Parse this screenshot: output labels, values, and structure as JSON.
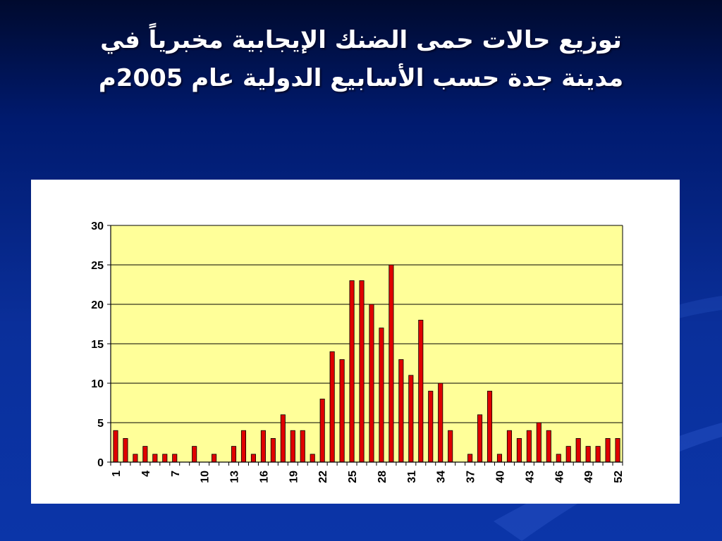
{
  "slide": {
    "title_line1": "توزيع حالات حمى الضنك الإيجابية مخبرياً في",
    "title_line2": "مدينة جدة حسب الأسابيع الدولية عام 2005م"
  },
  "chart_data": {
    "type": "bar",
    "x": [
      1,
      2,
      3,
      4,
      5,
      6,
      7,
      8,
      9,
      10,
      11,
      12,
      13,
      14,
      15,
      16,
      17,
      18,
      19,
      20,
      21,
      22,
      23,
      24,
      25,
      26,
      27,
      28,
      29,
      30,
      31,
      32,
      33,
      34,
      35,
      36,
      37,
      38,
      39,
      40,
      41,
      42,
      43,
      44,
      45,
      46,
      47,
      48,
      49,
      50,
      51,
      52
    ],
    "values": [
      4,
      3,
      1,
      2,
      1,
      1,
      1,
      0,
      2,
      0,
      1,
      0,
      2,
      4,
      1,
      4,
      3,
      6,
      4,
      4,
      1,
      8,
      14,
      13,
      23,
      23,
      20,
      17,
      25,
      13,
      11,
      18,
      9,
      10,
      4,
      0,
      1,
      6,
      9,
      1,
      4,
      3,
      4,
      5,
      4,
      1,
      2,
      3,
      2,
      2,
      3,
      3
    ],
    "tick_labels": [
      "1",
      "4",
      "7",
      "10",
      "13",
      "16",
      "19",
      "22",
      "25",
      "28",
      "31",
      "34",
      "37",
      "40",
      "43",
      "46",
      "49",
      "52"
    ],
    "y_tick_labels": [
      "0",
      "5",
      "10",
      "15",
      "20",
      "25",
      "30"
    ],
    "ylim": [
      0,
      30
    ],
    "title": "",
    "xlabel": "",
    "ylabel": "",
    "grid": true,
    "colors": {
      "bar": "#e00000",
      "bar_edge": "#000000",
      "plot_bg": "#ffff99",
      "grid": "#000000"
    }
  }
}
